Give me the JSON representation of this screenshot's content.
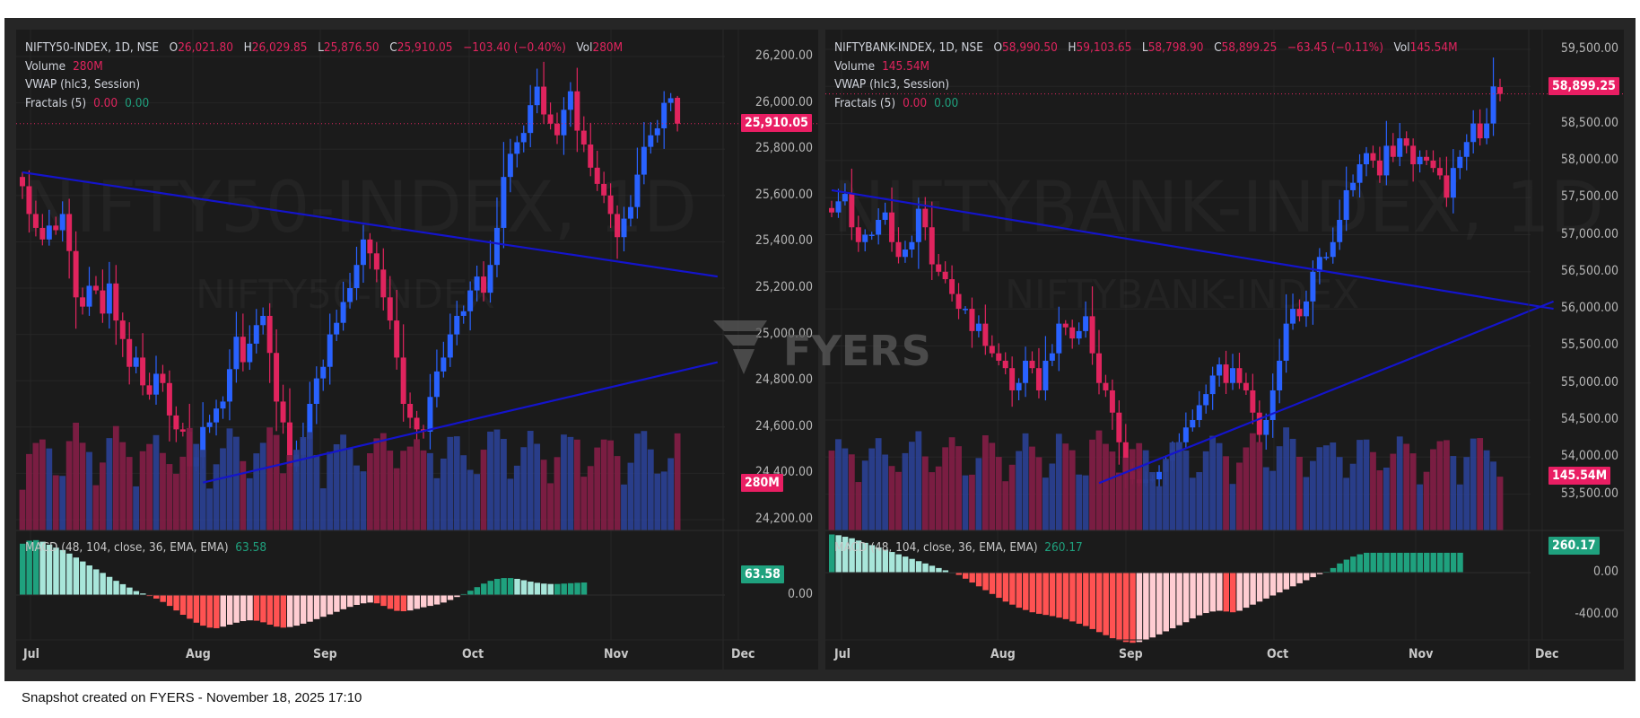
{
  "footer": "Snapshot created on FYERS - November 18, 2025 17:10",
  "watermark": {
    "brand": "FYERS"
  },
  "colors": {
    "up": "#2962ff",
    "down": "#e0245e",
    "vol_up": "#2a3f8f",
    "vol_down": "#7f1d45",
    "trend": "#1414cc",
    "macd_pos_strong": "#1fa17e",
    "macd_pos_weak": "#a8e6da",
    "macd_neg_strong": "#ff5252",
    "macd_neg_weak": "#ffcdd2",
    "fractal_up": "#1fa17e",
    "fractal_down": "#e0245e"
  },
  "charts": [
    {
      "symbol_line": "NIFTY50-INDEX, 1D, NSE",
      "o_label": "O",
      "o": "26,021.80",
      "h_label": "H",
      "h": "26,029.85",
      "l_label": "L",
      "l": "25,876.50",
      "c_label": "C",
      "c": "25,910.05",
      "change": "−103.40 (−0.40%)",
      "vol_label": "Vol",
      "vol": "280M",
      "volume_label": "Volume",
      "volume_value": "280M",
      "vwap_label": "VWAP (hlc3, Session)",
      "fractals_label": "Fractals (5)",
      "fractals_v1": "0.00",
      "fractals_v2": "0.00",
      "macd_label": "MACD (48, 104, close, 36, EMA, EMA)",
      "macd_value": "63.58",
      "watermark_big": "NIFTY50-INDEX, 1D",
      "watermark_small": "NIFTY50-INDEX",
      "last_price_tag": "25,910.05",
      "volume_tag": "280M",
      "macd_tag": "63.58",
      "price_ticks": [
        "26,200.00",
        "26,000.00",
        "25,800.00",
        "25,600.00",
        "25,400.00",
        "25,200.00",
        "25,000.00",
        "24,800.00",
        "24,600.00",
        "24,400.00",
        "24,200.00"
      ],
      "macd_ticks": [
        "0.00"
      ],
      "time_ticks": [
        "Jul",
        "Aug",
        "Sep",
        "Oct",
        "Nov",
        "Dec"
      ]
    },
    {
      "symbol_line": "NIFTYBANK-INDEX, 1D, NSE",
      "o_label": "O",
      "o": "58,990.50",
      "h_label": "H",
      "h": "59,103.65",
      "l_label": "L",
      "l": "58,798.90",
      "c_label": "C",
      "c": "58,899.25",
      "change": "−63.45 (−0.11%)",
      "vol_label": "Vol",
      "vol": "145.54M",
      "volume_label": "Volume",
      "volume_value": "145.54M",
      "vwap_label": "VWAP (hlc3, Session)",
      "fractals_label": "Fractals (5)",
      "fractals_v1": "0.00",
      "fractals_v2": "0.00",
      "macd_label": "MACD (48, 104, close, 36, EMA, EMA)",
      "macd_value": "260.17",
      "watermark_big": "NIFTYBANK-INDEX, 1D",
      "watermark_small": "NIFTYBANK-INDEX",
      "last_price_tag": "58,899.25",
      "volume_tag": "145.54M",
      "macd_tag": "260.17",
      "price_ticks": [
        "59,500.00",
        "59,000.00",
        "58,500.00",
        "58,000.00",
        "57,500.00",
        "57,000.00",
        "56,500.00",
        "56,000.00",
        "55,500.00",
        "55,000.00",
        "54,500.00",
        "54,000.00",
        "53,500.00"
      ],
      "macd_ticks": [
        "0.00",
        "-400.00"
      ],
      "time_ticks": [
        "Jul",
        "Aug",
        "Sep",
        "Oct",
        "Nov",
        "Dec"
      ]
    }
  ],
  "chart_data": [
    {
      "type": "candlestick",
      "title": "NIFTY50-INDEX, 1D, NSE",
      "ylim": [
        24150,
        26250
      ],
      "x_range": [
        "2025-06-30",
        "2025-12-05"
      ],
      "last": {
        "open": 26021.8,
        "high": 26029.85,
        "low": 25876.5,
        "close": 25910.05,
        "volume": "280M"
      },
      "closes": [
        25640,
        25520,
        25460,
        25410,
        25470,
        25450,
        25520,
        25360,
        25160,
        25120,
        25210,
        25190,
        25090,
        25220,
        25060,
        24980,
        24860,
        24900,
        24780,
        24740,
        24830,
        24790,
        24650,
        24590,
        24580,
        24430,
        24470,
        24600,
        24620,
        24680,
        24710,
        24850,
        24990,
        24880,
        24960,
        25040,
        25080,
        24920,
        24710,
        24620,
        24430,
        24480,
        24550,
        24700,
        24810,
        24860,
        25000,
        25050,
        25140,
        25200,
        25300,
        25410,
        25350,
        25280,
        25160,
        25060,
        24900,
        24700,
        24640,
        24590,
        24580,
        24730,
        24840,
        24900,
        25000,
        25080,
        25100,
        25190,
        25250,
        25180,
        25300,
        25460,
        25680,
        25780,
        25830,
        25870,
        25990,
        26070,
        25950,
        25910,
        25860,
        25970,
        26050,
        25880,
        25820,
        25720,
        25650,
        25600,
        25520,
        25420,
        25500,
        25550,
        25690,
        25810,
        25860,
        25890,
        26000,
        26020,
        25910
      ],
      "trendlines": [
        {
          "from": [
            0,
            25700
          ],
          "to": [
            104,
            25250
          ]
        },
        {
          "from": [
            27,
            24360
          ],
          "to": [
            104,
            24880
          ]
        }
      ],
      "macd_hist": [
        260,
        275,
        278,
        270,
        255,
        240,
        228,
        210,
        190,
        170,
        150,
        130,
        112,
        92,
        72,
        55,
        38,
        20,
        8,
        -5,
        -18,
        -35,
        -55,
        -78,
        -100,
        -120,
        -140,
        -155,
        -165,
        -168,
        -160,
        -150,
        -140,
        -132,
        -128,
        -130,
        -138,
        -150,
        -160,
        -165,
        -162,
        -155,
        -145,
        -135,
        -122,
        -110,
        -98,
        -85,
        -72,
        -60,
        -50,
        -42,
        -38,
        -42,
        -55,
        -70,
        -80,
        -82,
        -78,
        -70,
        -62,
        -55,
        -48,
        -38,
        -25,
        -10,
        5,
        22,
        40,
        58,
        72,
        82,
        86,
        86,
        82,
        75,
        68,
        62,
        58,
        56,
        56,
        58,
        60,
        62,
        63.58
      ],
      "macd_ylim": [
        -200,
        300
      ]
    },
    {
      "type": "candlestick",
      "title": "NIFTYBANK-INDEX, 1D, NSE",
      "ylim": [
        53200,
        59700
      ],
      "x_range": [
        "2025-06-30",
        "2025-12-05"
      ],
      "last": {
        "open": 58990.5,
        "high": 59103.65,
        "low": 58798.9,
        "close": 58899.25,
        "volume": "145.54M"
      },
      "closes": [
        57300,
        57450,
        57550,
        57100,
        56900,
        57000,
        57000,
        57200,
        57300,
        56900,
        56700,
        56800,
        56900,
        57350,
        57100,
        56600,
        56500,
        56400,
        56200,
        56000,
        56000,
        55700,
        55800,
        55500,
        55400,
        55300,
        55200,
        54900,
        55000,
        55300,
        55200,
        54900,
        55300,
        55400,
        55800,
        55750,
        55600,
        55700,
        55900,
        55400,
        55000,
        54900,
        54600,
        54200,
        53800,
        53700,
        53650,
        53700,
        53700,
        53800,
        53950,
        54100,
        54200,
        54400,
        54500,
        54700,
        54850,
        55100,
        55250,
        55000,
        55200,
        55000,
        54900,
        54600,
        54300,
        54500,
        54900,
        55300,
        55800,
        56000,
        55900,
        56100,
        56500,
        56700,
        56700,
        56900,
        57200,
        57600,
        57700,
        57950,
        58100,
        58000,
        57800,
        58200,
        58050,
        58300,
        58200,
        57950,
        58050,
        58000,
        57900,
        57800,
        57500,
        57900,
        58050,
        58250,
        58500,
        58300,
        58500,
        59000,
        58899.25
      ],
      "trendlines": [
        {
          "from": [
            0,
            57600
          ],
          "to": [
            108,
            56000
          ]
        },
        {
          "from": [
            40,
            53650
          ],
          "to": [
            108,
            56100
          ]
        }
      ],
      "macd_hist": [
        500,
        490,
        470,
        450,
        420,
        390,
        360,
        330,
        300,
        270,
        240,
        210,
        180,
        150,
        120,
        90,
        60,
        30,
        5,
        -30,
        -80,
        -130,
        -180,
        -230,
        -280,
        -330,
        -380,
        -420,
        -460,
        -490,
        -520,
        -540,
        -555,
        -570,
        -590,
        -610,
        -640,
        -670,
        -700,
        -740,
        -780,
        -820,
        -860,
        -890,
        -910,
        -920,
        -910,
        -880,
        -850,
        -810,
        -770,
        -730,
        -690,
        -650,
        -600,
        -560,
        -530,
        -510,
        -500,
        -510,
        -520,
        -500,
        -460,
        -420,
        -380,
        -340,
        -300,
        -260,
        -220,
        -180,
        -140,
        -100,
        -60,
        -20,
        10,
        60,
        120,
        170,
        210,
        240,
        260,
        260,
        260,
        260,
        260,
        260,
        260,
        260,
        260,
        260,
        260,
        260,
        260,
        260,
        260.17
      ],
      "macd_ylim": [
        -1000,
        620
      ]
    }
  ]
}
